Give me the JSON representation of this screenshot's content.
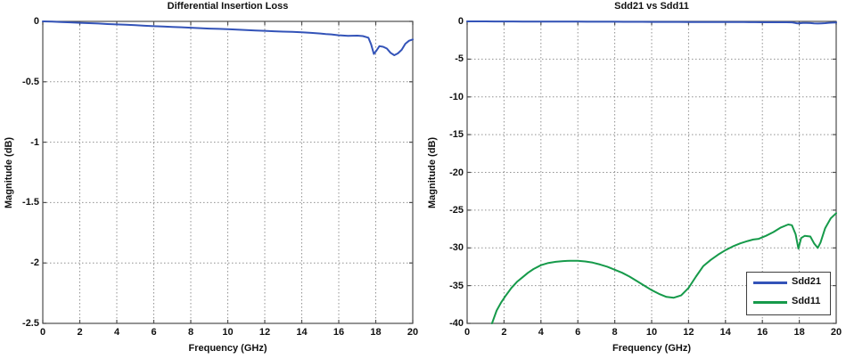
{
  "window": {
    "background": "#ffffff"
  },
  "colors": {
    "sdd21_blue": "#3353b8",
    "sdd11_green": "#169a4a",
    "axis": "#4d4d4d",
    "grid": "#909090",
    "text": "#111111"
  },
  "chart_data": [
    {
      "type": "line",
      "title": "Differential Insertion Loss",
      "xlabel": "Frequency (GHz)",
      "ylabel": "Magnitude (dB)",
      "xlim": [
        0,
        20
      ],
      "ylim": [
        -2.5,
        0
      ],
      "xticks": [
        0,
        2,
        4,
        6,
        8,
        10,
        12,
        14,
        16,
        18,
        20
      ],
      "yticks": [
        0,
        -0.5,
        -1,
        -1.5,
        -2,
        -2.5
      ],
      "grid": true,
      "legend": null,
      "series": [
        {
          "name": "Sdd21",
          "color": "#3353b8",
          "x": [
            0,
            0.5,
            1,
            1.5,
            2,
            2.5,
            3,
            3.5,
            4,
            4.5,
            5,
            5.5,
            6,
            6.5,
            7,
            7.5,
            8,
            8.5,
            9,
            9.5,
            10,
            10.5,
            11,
            11.5,
            12,
            12.5,
            13,
            13.5,
            14,
            14.5,
            15,
            15.3,
            15.6,
            16,
            16.5,
            17,
            17.3,
            17.6,
            17.75,
            17.9,
            18.05,
            18.2,
            18.4,
            18.6,
            18.8,
            19.0,
            19.2,
            19.4,
            19.6,
            19.8,
            20
          ],
          "y": [
            0,
            -0.002,
            -0.005,
            -0.008,
            -0.012,
            -0.015,
            -0.018,
            -0.022,
            -0.025,
            -0.028,
            -0.032,
            -0.036,
            -0.04,
            -0.043,
            -0.046,
            -0.049,
            -0.052,
            -0.056,
            -0.06,
            -0.062,
            -0.065,
            -0.068,
            -0.072,
            -0.075,
            -0.078,
            -0.082,
            -0.085,
            -0.087,
            -0.09,
            -0.095,
            -0.1,
            -0.105,
            -0.108,
            -0.115,
            -0.12,
            -0.118,
            -0.122,
            -0.135,
            -0.19,
            -0.27,
            -0.24,
            -0.205,
            -0.21,
            -0.225,
            -0.26,
            -0.28,
            -0.265,
            -0.235,
            -0.185,
            -0.16,
            -0.15
          ]
        }
      ]
    },
    {
      "type": "line",
      "title": "Sdd21 vs Sdd11",
      "xlabel": "Frequency (GHz)",
      "ylabel": "Magnitude (dB)",
      "xlim": [
        0,
        20
      ],
      "ylim": [
        -40,
        0
      ],
      "xticks": [
        0,
        2,
        4,
        6,
        8,
        10,
        12,
        14,
        16,
        18,
        20
      ],
      "yticks": [
        0,
        -5,
        -10,
        -15,
        -20,
        -25,
        -30,
        -35,
        -40
      ],
      "grid": true,
      "legend": {
        "position": "bottom-right",
        "entries": [
          "Sdd21",
          "Sdd11"
        ]
      },
      "series": [
        {
          "name": "Sdd21",
          "color": "#3353b8",
          "x": [
            0,
            0.5,
            1,
            1.5,
            2,
            2.5,
            3,
            3.5,
            4,
            4.5,
            5,
            5.5,
            6,
            6.5,
            7,
            7.5,
            8,
            8.5,
            9,
            9.5,
            10,
            10.5,
            11,
            11.5,
            12,
            12.5,
            13,
            13.5,
            14,
            14.5,
            15,
            15.3,
            15.6,
            16,
            16.5,
            17,
            17.3,
            17.6,
            17.75,
            17.9,
            18.05,
            18.2,
            18.4,
            18.6,
            18.8,
            19.0,
            19.2,
            19.4,
            19.6,
            19.8,
            20
          ],
          "y": [
            0,
            -0.002,
            -0.005,
            -0.008,
            -0.012,
            -0.015,
            -0.018,
            -0.022,
            -0.025,
            -0.028,
            -0.032,
            -0.036,
            -0.04,
            -0.043,
            -0.046,
            -0.049,
            -0.052,
            -0.056,
            -0.06,
            -0.062,
            -0.065,
            -0.068,
            -0.072,
            -0.075,
            -0.078,
            -0.082,
            -0.085,
            -0.087,
            -0.09,
            -0.095,
            -0.1,
            -0.105,
            -0.108,
            -0.115,
            -0.12,
            -0.118,
            -0.122,
            -0.135,
            -0.19,
            -0.27,
            -0.24,
            -0.205,
            -0.21,
            -0.225,
            -0.26,
            -0.28,
            -0.265,
            -0.235,
            -0.185,
            -0.16,
            -0.15
          ]
        },
        {
          "name": "Sdd11",
          "color": "#169a4a",
          "x": [
            1.35,
            1.6,
            1.85,
            2.1,
            2.4,
            2.7,
            3,
            3.3,
            3.6,
            4,
            4.4,
            4.8,
            5.2,
            5.6,
            6,
            6.4,
            6.8,
            7.2,
            7.6,
            8,
            8.4,
            8.8,
            9.2,
            9.6,
            10,
            10.4,
            10.8,
            11.2,
            11.6,
            12,
            12.4,
            12.8,
            13.2,
            13.6,
            14,
            14.4,
            14.8,
            15.2,
            15.5,
            15.8,
            16.2,
            16.6,
            17,
            17.4,
            17.6,
            17.8,
            17.95,
            18.1,
            18.3,
            18.6,
            18.8,
            19.0,
            19.15,
            19.4,
            19.7,
            20
          ],
          "y": [
            -40,
            -38.3,
            -37.2,
            -36.3,
            -35.3,
            -34.5,
            -33.9,
            -33.3,
            -32.8,
            -32.3,
            -32.0,
            -31.85,
            -31.75,
            -31.7,
            -31.7,
            -31.8,
            -31.95,
            -32.2,
            -32.5,
            -32.9,
            -33.3,
            -33.8,
            -34.4,
            -35.0,
            -35.6,
            -36.1,
            -36.5,
            -36.6,
            -36.3,
            -35.3,
            -33.8,
            -32.4,
            -31.6,
            -30.9,
            -30.3,
            -29.8,
            -29.4,
            -29.1,
            -28.9,
            -28.8,
            -28.4,
            -27.9,
            -27.3,
            -26.9,
            -27.0,
            -28.2,
            -30.1,
            -28.7,
            -28.4,
            -28.5,
            -29.4,
            -30.0,
            -29.3,
            -27.4,
            -26.1,
            -25.4
          ]
        }
      ]
    }
  ]
}
